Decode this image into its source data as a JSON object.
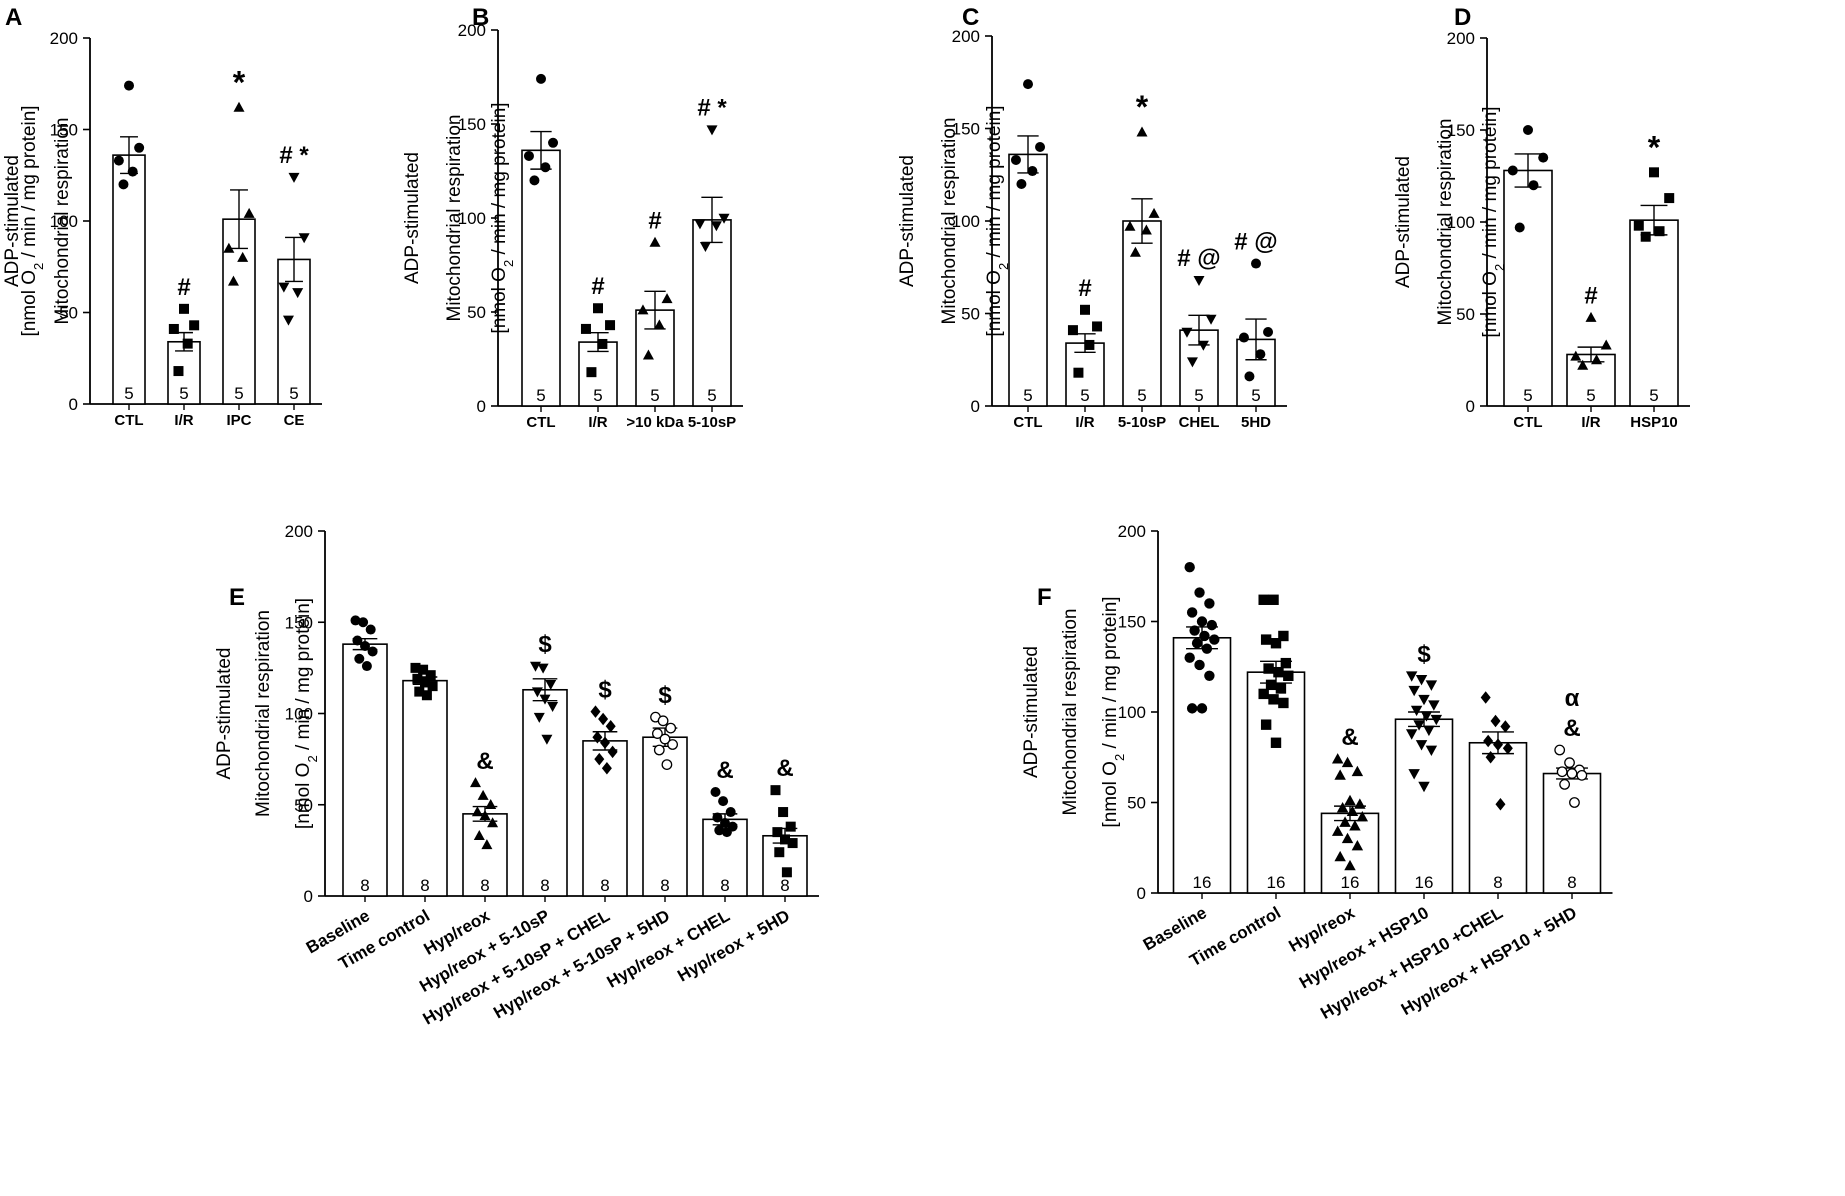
{
  "chart_data": [
    {
      "panel": "A",
      "type": "bar",
      "ylabel": [
        "ADP-stimulated",
        "Mitochondrial respiration",
        "[nmol O2 / min / mg protein]"
      ],
      "ylim": [
        0,
        200
      ],
      "yticks": [
        0,
        50,
        100,
        150,
        200
      ],
      "categories": [
        "CTL",
        "I/R",
        "IPC",
        "CE"
      ],
      "values": [
        136,
        34,
        101,
        79
      ],
      "sem": [
        10,
        5,
        16,
        12
      ],
      "n": [
        5,
        5,
        5,
        5
      ],
      "markers": [
        "circle",
        "square",
        "triangle",
        "triangle-down"
      ],
      "points": [
        [
          174,
          140,
          133,
          127,
          120
        ],
        [
          52,
          43,
          41,
          33,
          18
        ],
        [
          162,
          104,
          85,
          80,
          67
        ],
        [
          124,
          91,
          64,
          61,
          46
        ]
      ],
      "annotations": [
        "",
        "#",
        "*",
        "# *"
      ]
    },
    {
      "panel": "B",
      "type": "bar",
      "ylabel": [
        "ADP-stimulated",
        "Mitochondrial respiration",
        "[nmol O2 / min / mg protein]"
      ],
      "ylim": [
        0,
        200
      ],
      "yticks": [
        0,
        50,
        100,
        150,
        200
      ],
      "categories": [
        "CTL",
        "I/R",
        ">10 kDa",
        "5-10sP"
      ],
      "values": [
        136,
        34,
        51,
        99
      ],
      "sem": [
        10,
        5,
        10,
        12
      ],
      "n": [
        5,
        5,
        5,
        5
      ],
      "markers": [
        "circle",
        "square",
        "triangle",
        "triangle-down"
      ],
      "points": [
        [
          174,
          140,
          133,
          127,
          120
        ],
        [
          52,
          43,
          41,
          33,
          18
        ],
        [
          87,
          57,
          51,
          43,
          27
        ],
        [
          147,
          100,
          97,
          96,
          85
        ]
      ],
      "annotations": [
        "",
        "#",
        "#",
        "# *"
      ]
    },
    {
      "panel": "C",
      "type": "bar",
      "ylabel": [
        "ADP-stimulated",
        "Mitochondrial respiration",
        "[nmol O2 / min / mg protein]"
      ],
      "ylim": [
        0,
        200
      ],
      "yticks": [
        0,
        50,
        100,
        150,
        200
      ],
      "categories": [
        "CTL",
        "I/R",
        "5-10sP",
        "CHEL",
        "5HD"
      ],
      "values": [
        136,
        34,
        100,
        41,
        36
      ],
      "sem": [
        10,
        5,
        12,
        8,
        11
      ],
      "n": [
        5,
        5,
        5,
        5,
        5
      ],
      "markers": [
        "circle",
        "square",
        "triangle",
        "triangle-down",
        "circle"
      ],
      "points": [
        [
          174,
          140,
          133,
          127,
          120
        ],
        [
          52,
          43,
          41,
          33,
          18
        ],
        [
          148,
          104,
          97,
          95,
          83
        ],
        [
          68,
          47,
          40,
          33,
          24
        ],
        [
          77,
          40,
          37,
          28,
          16
        ]
      ],
      "annotations": [
        "",
        "#",
        "*",
        "# @",
        "# @"
      ]
    },
    {
      "panel": "D",
      "type": "bar",
      "ylabel": [
        "ADP-stimulated",
        "Mitochondrial respiration",
        "[nmol O2 / min / mg protein]"
      ],
      "ylim": [
        0,
        200
      ],
      "yticks": [
        0,
        50,
        100,
        150,
        200
      ],
      "categories": [
        "CTL",
        "I/R",
        "HSP10"
      ],
      "values": [
        128,
        28,
        101
      ],
      "sem": [
        9,
        4,
        8
      ],
      "n": [
        5,
        5,
        5
      ],
      "markers": [
        "circle",
        "triangle",
        "square"
      ],
      "points": [
        [
          150,
          135,
          128,
          120,
          97
        ],
        [
          48,
          33,
          27,
          25,
          22
        ],
        [
          127,
          113,
          98,
          95,
          92
        ]
      ],
      "annotations": [
        "",
        "#",
        "*"
      ]
    },
    {
      "panel": "E",
      "type": "bar",
      "ylabel": [
        "ADP-stimulated",
        "Mitochondrial respiration",
        "[nmol O2 / min / mg protein]"
      ],
      "ylim": [
        0,
        200
      ],
      "yticks": [
        0,
        50,
        100,
        150,
        200
      ],
      "categories": [
        "Baseline",
        "Time control",
        "Hyp/reox",
        "Hyp/reox + 5-10sP",
        "Hyp/reox + 5-10sP + CHEL",
        "Hyp/reox + 5-10sP + 5HD",
        "Hyp/reox + CHEL",
        "Hyp/reox + 5HD"
      ],
      "values": [
        138,
        118,
        45,
        113,
        85,
        87,
        42,
        33
      ],
      "sem": [
        3,
        2,
        4,
        6,
        5,
        5,
        3,
        4
      ],
      "n": [
        8,
        8,
        8,
        8,
        8,
        8,
        8,
        8
      ],
      "markers": [
        "circle",
        "square",
        "triangle",
        "triangle-down",
        "diamond",
        "open-circle",
        "circle",
        "square"
      ],
      "points": [
        [
          151,
          150,
          146,
          140,
          137,
          134,
          130,
          126
        ],
        [
          125,
          124,
          121,
          119,
          117,
          115,
          112,
          110
        ],
        [
          62,
          55,
          50,
          46,
          44,
          40,
          33,
          28
        ],
        [
          126,
          125,
          116,
          112,
          108,
          104,
          98,
          86
        ],
        [
          101,
          97,
          93,
          87,
          84,
          79,
          75,
          70
        ],
        [
          98,
          96,
          92,
          89,
          86,
          83,
          80,
          72
        ],
        [
          57,
          52,
          46,
          43,
          40,
          38,
          36,
          35
        ],
        [
          58,
          46,
          38,
          35,
          31,
          29,
          24,
          13
        ]
      ],
      "annotations": [
        "",
        "",
        "&",
        "$",
        "$",
        "$",
        "&",
        "&"
      ]
    },
    {
      "panel": "F",
      "type": "bar",
      "ylabel": [
        "ADP-stimulated",
        "Mitochondrial respiration",
        "[nmol O2 / min / mg protein]"
      ],
      "ylim": [
        0,
        200
      ],
      "yticks": [
        0,
        50,
        100,
        150,
        200
      ],
      "categories": [
        "Baseline",
        "Time control",
        "Hyp/reox",
        "Hyp/reox + HSP10",
        "Hyp/reox + HSP10 +CHEL",
        "Hyp/reox + HSP10 + 5HD"
      ],
      "values": [
        141,
        122,
        44,
        96,
        83,
        66
      ],
      "sem": [
        6,
        6,
        4,
        4,
        6,
        3
      ],
      "n": [
        16,
        16,
        16,
        16,
        8,
        8
      ],
      "markers": [
        "circle",
        "square",
        "triangle",
        "triangle-down",
        "diamond",
        "open-circle"
      ],
      "points": [
        [
          180,
          166,
          160,
          155,
          150,
          148,
          145,
          142,
          140,
          138,
          135,
          130,
          126,
          120,
          102,
          102
        ],
        [
          162,
          162,
          142,
          140,
          138,
          127,
          124,
          122,
          120,
          115,
          113,
          110,
          107,
          105,
          93,
          83
        ],
        [
          74,
          72,
          67,
          65,
          51,
          49,
          47,
          45,
          42,
          39,
          37,
          34,
          30,
          26,
          20,
          15
        ],
        [
          120,
          118,
          115,
          112,
          107,
          104,
          101,
          98,
          96,
          93,
          90,
          88,
          82,
          79,
          66,
          59
        ],
        [
          108,
          95,
          92,
          84,
          82,
          80,
          75,
          49
        ],
        [
          79,
          72,
          68,
          67,
          66,
          65,
          60,
          50
        ]
      ],
      "annotations": [
        "",
        "",
        "&",
        "$",
        "",
        "α\n&"
      ]
    }
  ]
}
